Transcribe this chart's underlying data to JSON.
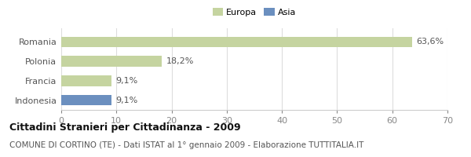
{
  "categories": [
    "Romania",
    "Polonia",
    "Francia",
    "Indonesia"
  ],
  "values": [
    63.6,
    18.2,
    9.1,
    9.1
  ],
  "bar_colors": [
    "#c5d4a0",
    "#c5d4a0",
    "#c5d4a0",
    "#6b8fbf"
  ],
  "value_labels": [
    "63,6%",
    "18,2%",
    "9,1%",
    "9,1%"
  ],
  "xlim": [
    0,
    70
  ],
  "xticks": [
    0,
    10,
    20,
    30,
    40,
    50,
    60,
    70
  ],
  "legend_items": [
    {
      "label": "Europa",
      "color": "#c5d4a0"
    },
    {
      "label": "Asia",
      "color": "#6b8fbf"
    }
  ],
  "title": "Cittadini Stranieri per Cittadinanza - 2009",
  "subtitle": "COMUNE DI CORTINO (TE) - Dati ISTAT al 1° gennaio 2009 - Elaborazione TUTTITALIA.IT",
  "background_color": "#ffffff",
  "bar_height": 0.55,
  "title_fontsize": 9,
  "subtitle_fontsize": 7.5,
  "tick_fontsize": 8,
  "label_fontsize": 8
}
